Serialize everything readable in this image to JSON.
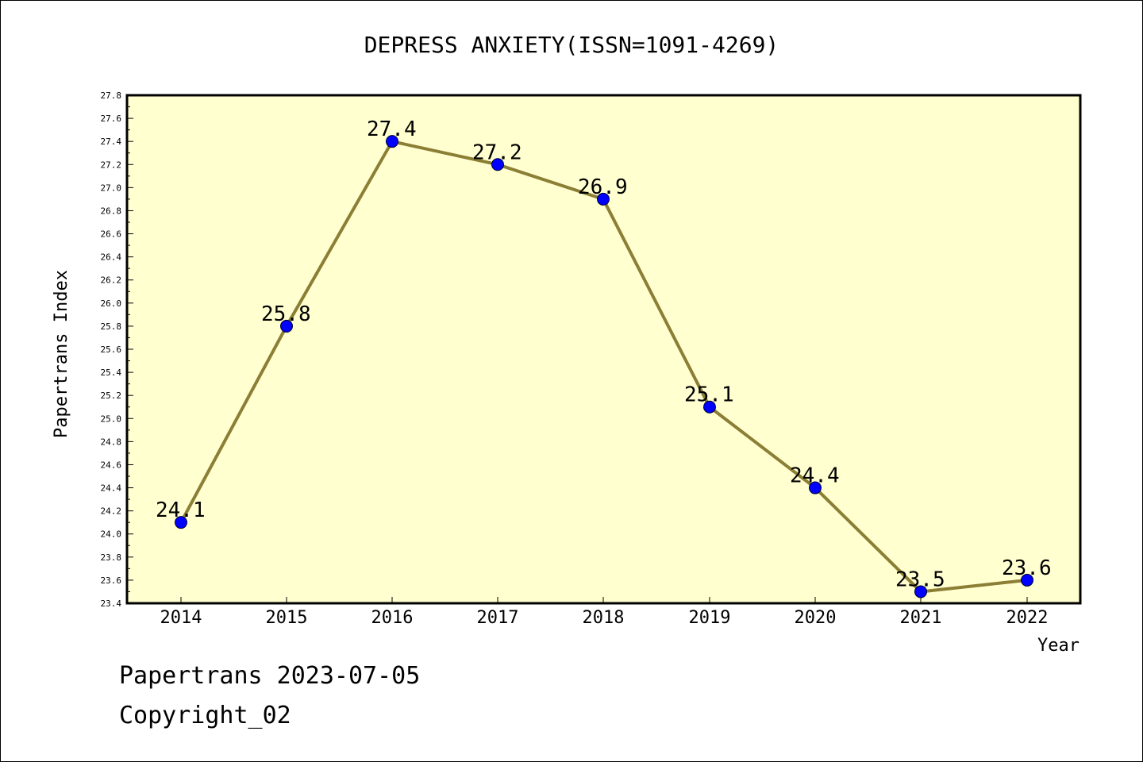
{
  "chart_data": {
    "type": "line",
    "title": "DEPRESS ANXIETY(ISSN=1091-4269)",
    "xlabel": "Year",
    "ylabel": "Papertrans Index",
    "categories": [
      "2014",
      "2015",
      "2016",
      "2017",
      "2018",
      "2019",
      "2020",
      "2021",
      "2022"
    ],
    "series": [
      {
        "values": [
          24.1,
          25.8,
          27.4,
          27.2,
          26.9,
          25.1,
          24.4,
          23.5,
          23.6
        ]
      }
    ],
    "data_labels": [
      "24.1",
      "25.8",
      "27.4",
      "27.2",
      "26.9",
      "25.1",
      "24.4",
      "23.5",
      "23.6"
    ],
    "ylim": [
      23.4,
      27.8
    ],
    "y_ticks": [
      "23.4",
      "23.6",
      "23.8",
      "24.0",
      "24.2",
      "24.4",
      "24.6",
      "24.8",
      "25.0",
      "25.2",
      "25.4",
      "25.6",
      "25.8",
      "26.0",
      "26.2",
      "26.4",
      "26.6",
      "26.8",
      "27.0",
      "27.2",
      "27.4",
      "27.6",
      "27.8"
    ],
    "grid": false,
    "legend": "none",
    "colors": {
      "plot_background": "#ffffd0",
      "line": "#8b7e35",
      "marker": "#0000ff"
    }
  },
  "footer": {
    "source": "Papertrans 2023-07-05",
    "copyright": "Copyright_02"
  }
}
